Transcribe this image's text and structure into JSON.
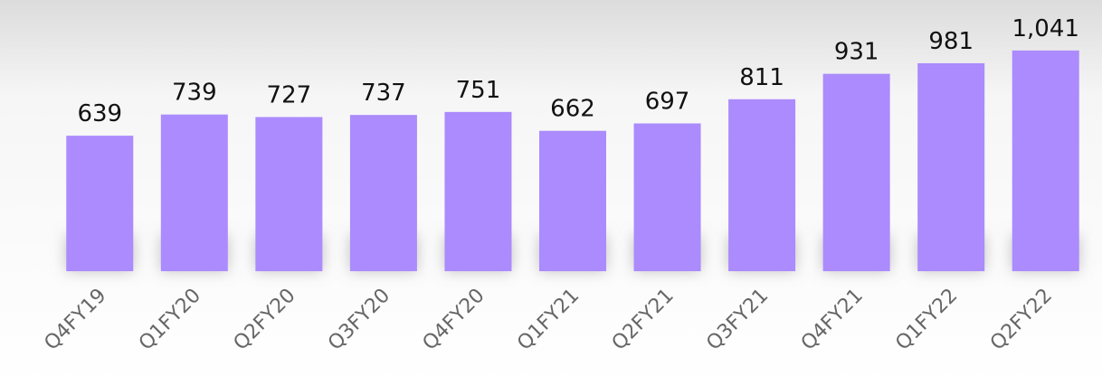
{
  "chart_data": {
    "type": "bar",
    "categories": [
      "Q4FY19",
      "Q1FY20",
      "Q2FY20",
      "Q3FY20",
      "Q4FY20",
      "Q1FY21",
      "Q2FY21",
      "Q3FY21",
      "Q4FY21",
      "Q1FY22",
      "Q2FY22"
    ],
    "values": [
      639,
      739,
      727,
      737,
      751,
      662,
      697,
      811,
      931,
      981,
      1041
    ],
    "value_labels": [
      "639",
      "739",
      "727",
      "737",
      "751",
      "662",
      "697",
      "811",
      "931",
      "981",
      "1,041"
    ],
    "color": "#ab8bfd",
    "ylim": [
      0,
      1100
    ]
  }
}
